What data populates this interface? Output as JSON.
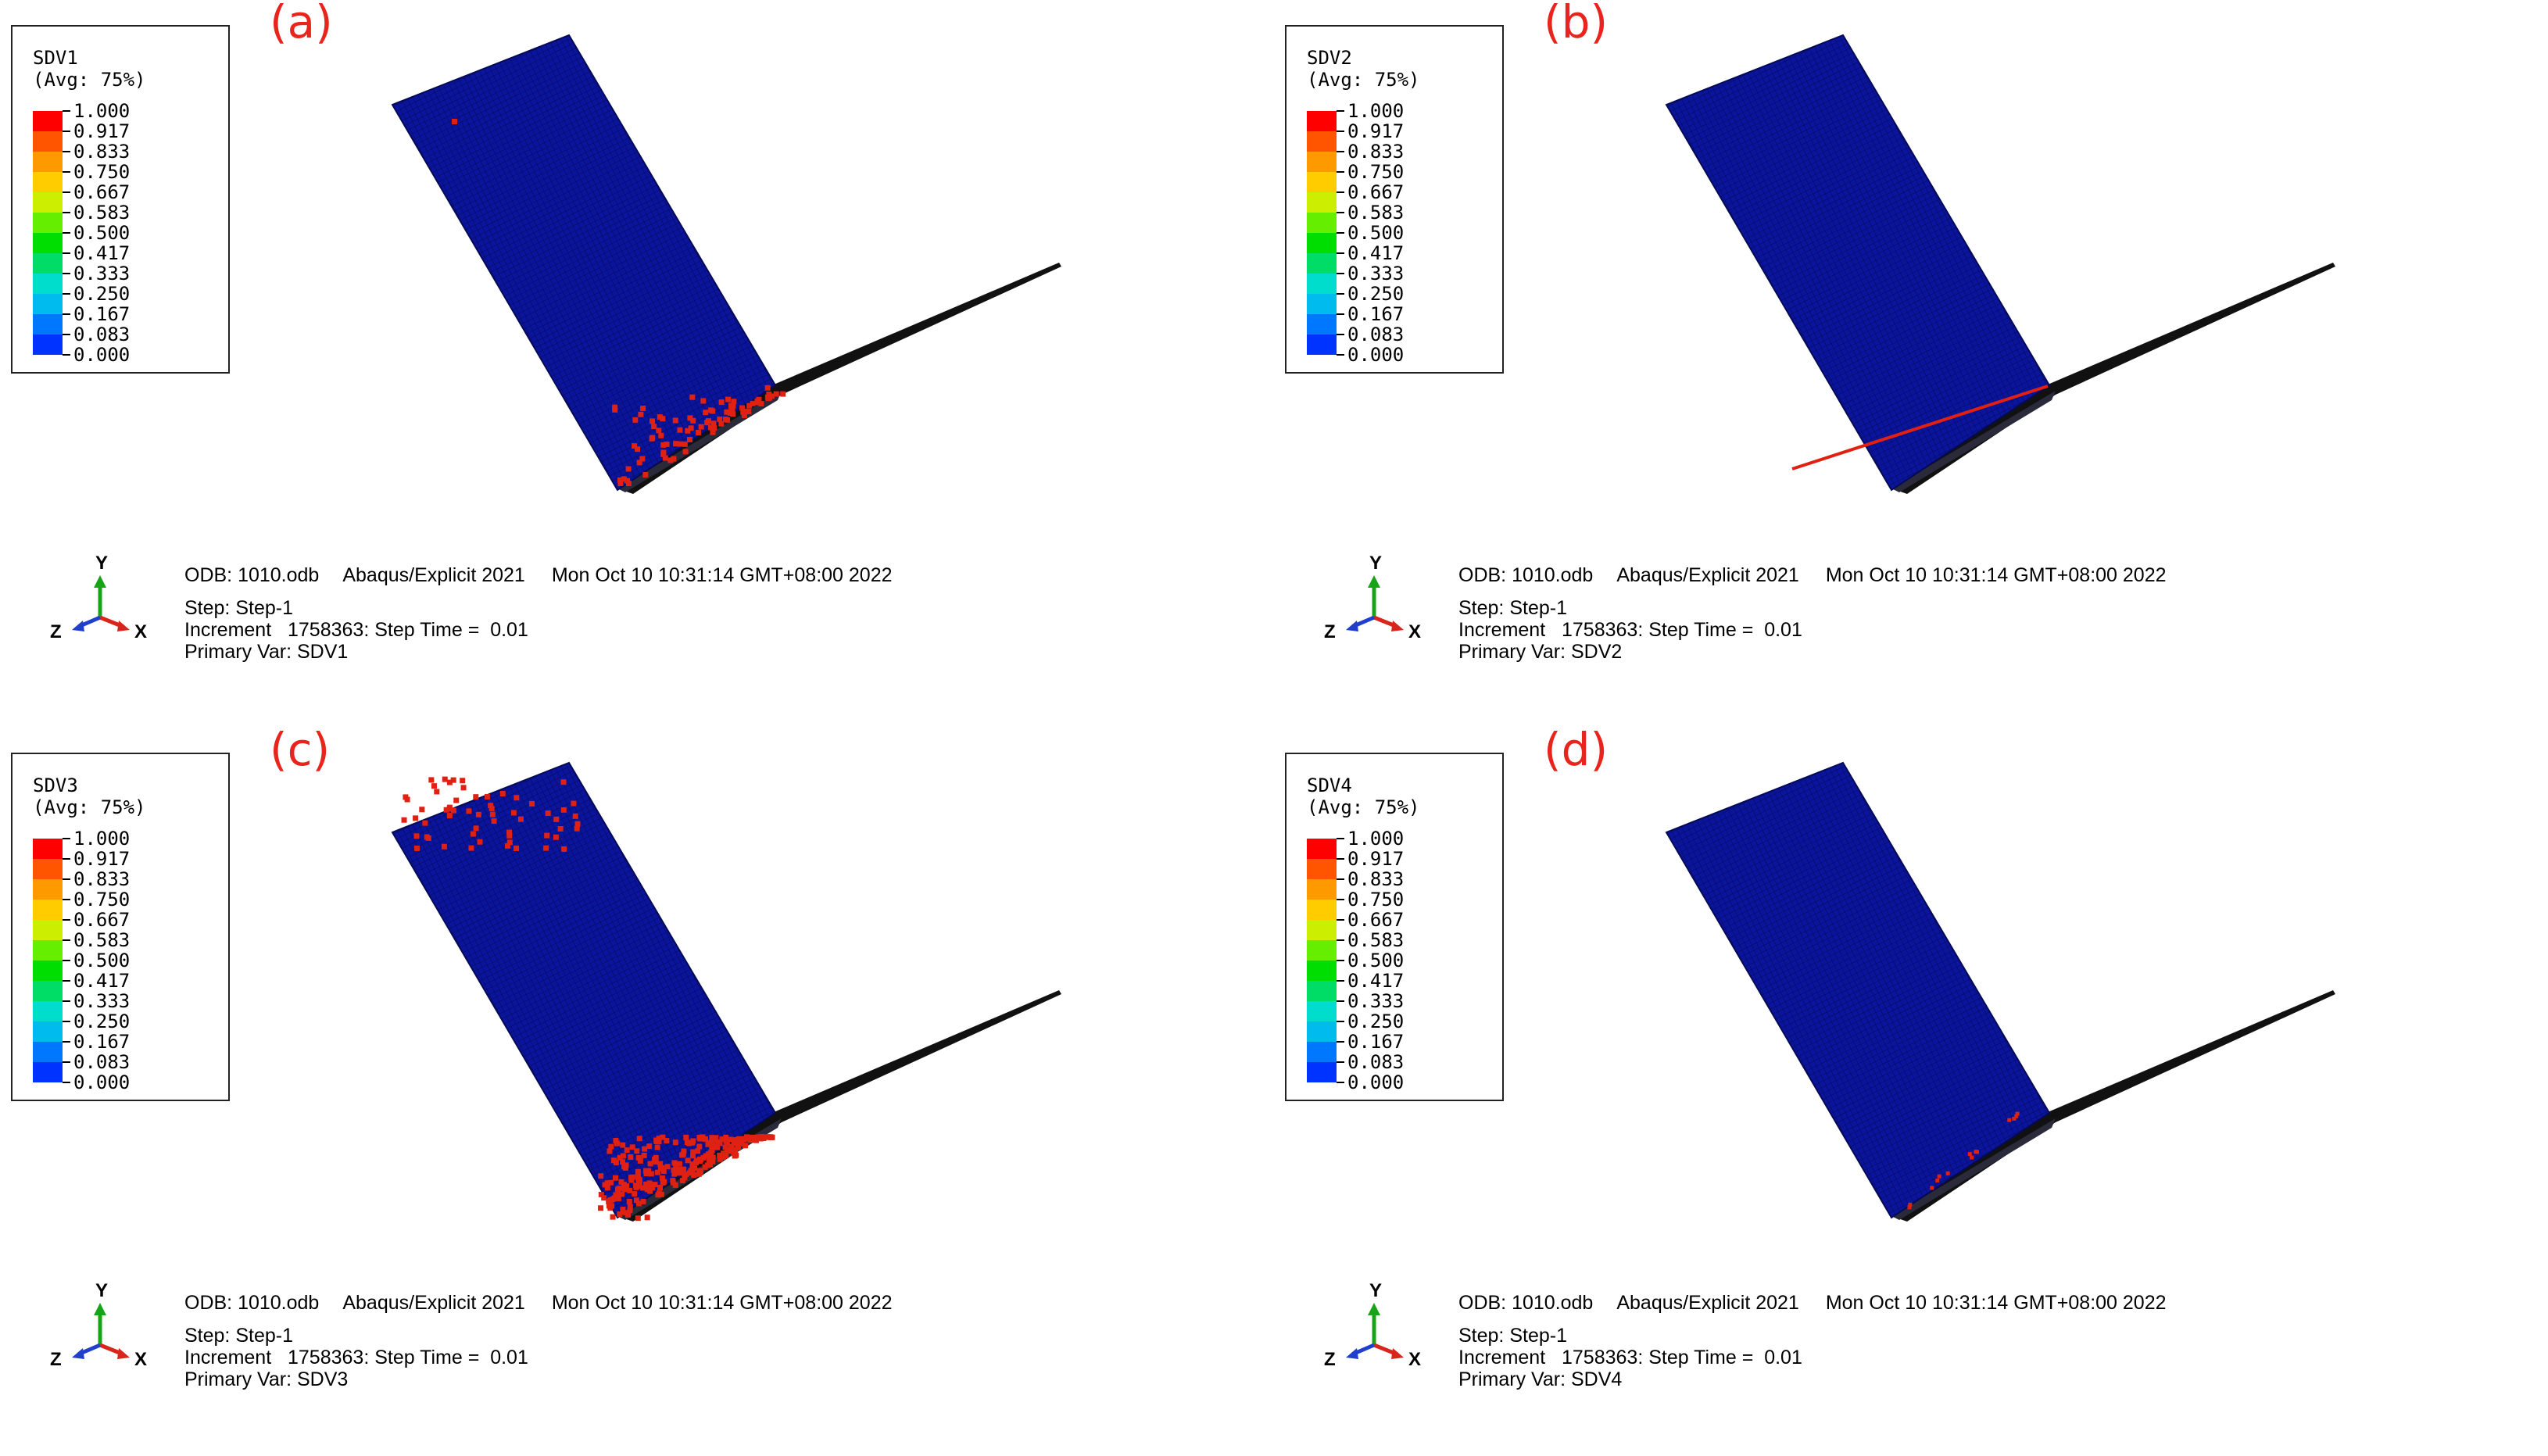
{
  "legend_colors": [
    "#ff0000",
    "#ff5500",
    "#ff9900",
    "#ffcc00",
    "#ccee00",
    "#66ee00",
    "#00dd00",
    "#00dd66",
    "#00ddcc",
    "#00bbee",
    "#0077ff",
    "#0033ff",
    "#0000ee"
  ],
  "legend_ticks": [
    "1.000",
    "0.917",
    "0.833",
    "0.750",
    "0.667",
    "0.583",
    "0.500",
    "0.417",
    "0.333",
    "0.250",
    "0.167",
    "0.083",
    "0.000"
  ],
  "legend_avg": "(Avg: 75%)",
  "panels": [
    {
      "letter": "(a)",
      "var": "SDV1",
      "odb": "ODB: 1010.odb",
      "solver": "Abaqus/Explicit 2021",
      "date": "Mon Oct 10 10:31:14 GMT+08:00 2022",
      "step": "Step: Step-1",
      "increment": "Increment   1758363: Step Time =  0.01",
      "primary": "Primary Var: SDV1",
      "damage": "scattered"
    },
    {
      "letter": "(b)",
      "var": "SDV2",
      "odb": "ODB: 1010.odb",
      "solver": "Abaqus/Explicit 2021",
      "date": "Mon Oct 10 10:31:14 GMT+08:00 2022",
      "step": "Step: Step-1",
      "increment": "Increment   1758363: Step Time =  0.01",
      "primary": "Primary Var: SDV2",
      "damage": "line"
    },
    {
      "letter": "(c)",
      "var": "SDV3",
      "odb": "ODB: 1010.odb",
      "solver": "Abaqus/Explicit 2021",
      "date": "Mon Oct 10 10:31:14 GMT+08:00 2022",
      "step": "Step: Step-1",
      "increment": "Increment   1758363: Step Time =  0.01",
      "primary": "Primary Var: SDV3",
      "damage": "heavy"
    },
    {
      "letter": "(d)",
      "var": "SDV4",
      "odb": "ODB: 1010.odb",
      "solver": "Abaqus/Explicit 2021",
      "date": "Mon Oct 10 10:31:14 GMT+08:00 2022",
      "step": "Step: Step-1",
      "increment": "Increment   1758363: Step Time =  0.01",
      "primary": "Primary Var: SDV4",
      "damage": "sparse"
    }
  ],
  "triad_labels": {
    "y": "Y",
    "z": "Z",
    "x": "X"
  }
}
